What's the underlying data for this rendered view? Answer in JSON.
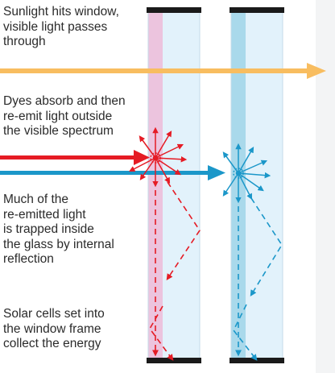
{
  "labels": {
    "sunlight": "Sunlight hits window,\nvisible light passes\nthrough",
    "dyes": "Dyes absorb and then\nre-emit light outside\nthe visible spectrum",
    "trapped": "Much of the\nre-emitted light\nis trapped inside\nthe glass by internal\nreflection",
    "cells": "Solar cells set into\nthe window frame\ncollect the energy"
  },
  "colors": {
    "glass": "#e2f2fb",
    "left_dye_strip": "#ecc4de",
    "right_dye_strip": "#a9d9eb",
    "frame": "#1a1a1a",
    "sunlight_arrow": "#f8bd60",
    "red_light": "#e51b24",
    "blue_light": "#1b97c9",
    "text": "#2b2b2b"
  }
}
